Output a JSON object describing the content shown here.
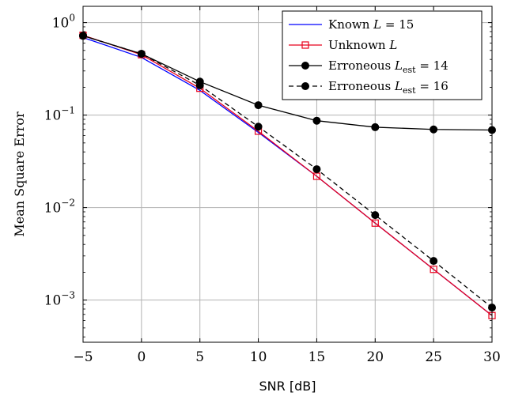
{
  "chart_data": {
    "type": "line",
    "xlabel": "SNR [dB]",
    "ylabel": "Mean Square Error",
    "yscale": "log",
    "xlim": [
      -5,
      30
    ],
    "ylim": [
      0.00035,
      1.5
    ],
    "grid": true,
    "legend_position": "top-right",
    "x_ticks": [
      -5,
      0,
      5,
      10,
      15,
      20,
      25,
      30
    ],
    "x_tick_labels": [
      "−5",
      "0",
      "5",
      "10",
      "15",
      "20",
      "25",
      "30"
    ],
    "y_ticks": [
      1,
      0.1,
      0.01,
      0.001
    ],
    "y_tick_labels": [
      {
        "base": "10",
        "exp": "0"
      },
      {
        "base": "10",
        "exp": "−1"
      },
      {
        "base": "10",
        "exp": "−2"
      },
      {
        "base": "10",
        "exp": "−3"
      }
    ],
    "x": [
      -5,
      0,
      5,
      10,
      15,
      20,
      25,
      30
    ],
    "series": [
      {
        "name": "Known L = 15",
        "legend": {
          "pre": "Known ",
          "var": "L",
          "post": " = 15"
        },
        "color": "#0000ff",
        "marker": "none",
        "dash": "solid",
        "values": [
          0.69,
          0.42,
          0.185,
          0.065,
          0.0218,
          0.0068,
          0.00215,
          0.00068
        ]
      },
      {
        "name": "Unknown L",
        "legend": {
          "pre": "Unknown ",
          "var": "L",
          "post": ""
        },
        "color": "#e8001c",
        "marker": "square",
        "dash": "solid",
        "values": [
          0.73,
          0.45,
          0.195,
          0.067,
          0.0218,
          0.0068,
          0.00215,
          0.00068
        ]
      },
      {
        "name": "Erroneous L_est = 14",
        "legend": {
          "pre": "Erroneous ",
          "var": "L",
          "sub": "est",
          "post": " = 14"
        },
        "color": "#000000",
        "marker": "circle",
        "dash": "solid",
        "values": [
          0.72,
          0.46,
          0.23,
          0.128,
          0.087,
          0.074,
          0.07,
          0.069
        ]
      },
      {
        "name": "Erroneous L_est = 16",
        "legend": {
          "pre": "Erroneous ",
          "var": "L",
          "sub": "est",
          "post": " = 16"
        },
        "color": "#000000",
        "marker": "circle",
        "dash": "dashed",
        "values": [
          0.72,
          0.46,
          0.21,
          0.075,
          0.026,
          0.0083,
          0.00265,
          0.00083
        ]
      }
    ]
  }
}
